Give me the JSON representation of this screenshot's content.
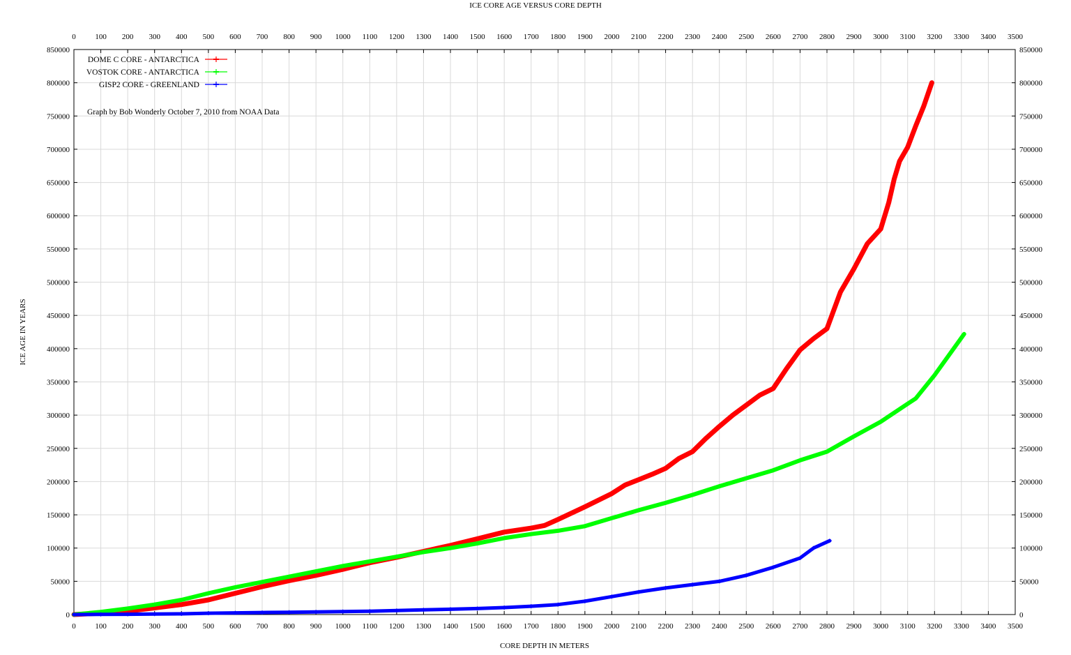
{
  "chart_data": {
    "type": "line",
    "title": "ICE CORE AGE VERSUS CORE DEPTH",
    "xlabel": "CORE DEPTH IN METERS",
    "ylabel": "ICE AGE IN YEARS",
    "annotation": "Graph by Bob Wonderly October 7, 2010 from NOAA Data",
    "xlim": [
      0,
      3500
    ],
    "ylim": [
      0,
      850000
    ],
    "x_ticks": [
      0,
      100,
      200,
      300,
      400,
      500,
      600,
      700,
      800,
      900,
      1000,
      1100,
      1200,
      1300,
      1400,
      1500,
      1600,
      1700,
      1800,
      1900,
      2000,
      2100,
      2200,
      2300,
      2400,
      2500,
      2600,
      2700,
      2800,
      2900,
      3000,
      3100,
      3200,
      3300,
      3400,
      3500
    ],
    "y_ticks": [
      0,
      50000,
      100000,
      150000,
      200000,
      250000,
      300000,
      350000,
      400000,
      450000,
      500000,
      550000,
      600000,
      650000,
      700000,
      750000,
      800000,
      850000
    ],
    "x_tick_axes": [
      "bottom",
      "top"
    ],
    "y_tick_axes": [
      "left",
      "right"
    ],
    "grid": true,
    "legend_position": "top-left",
    "series": [
      {
        "name": "DOME C CORE - ANTARCTICA",
        "color": "#ff0000",
        "x": [
          0,
          100,
          200,
          300,
          400,
          500,
          600,
          700,
          800,
          900,
          1000,
          1100,
          1200,
          1300,
          1400,
          1500,
          1600,
          1700,
          1750,
          1800,
          1900,
          2000,
          2050,
          2100,
          2150,
          2200,
          2250,
          2300,
          2350,
          2400,
          2450,
          2500,
          2550,
          2600,
          2650,
          2700,
          2750,
          2800,
          2850,
          2900,
          2950,
          3000,
          3030,
          3050,
          3070,
          3100,
          3130,
          3160,
          3190
        ],
        "y": [
          0,
          2000,
          5000,
          10000,
          15000,
          22000,
          32000,
          42000,
          51000,
          59000,
          68000,
          78000,
          86000,
          95000,
          104000,
          114000,
          124000,
          130000,
          134000,
          143000,
          162000,
          182000,
          195000,
          203000,
          211000,
          220000,
          235000,
          245000,
          265000,
          283000,
          300000,
          315000,
          330000,
          340000,
          370000,
          398000,
          415000,
          430000,
          485000,
          520000,
          558000,
          580000,
          620000,
          655000,
          682000,
          703000,
          735000,
          765000,
          800000
        ]
      },
      {
        "name": "VOSTOK CORE - ANTARCTICA",
        "color": "#00ff00",
        "x": [
          0,
          100,
          200,
          300,
          400,
          500,
          600,
          700,
          800,
          900,
          1000,
          1100,
          1200,
          1300,
          1400,
          1500,
          1600,
          1700,
          1800,
          1900,
          2000,
          2100,
          2200,
          2300,
          2400,
          2500,
          2600,
          2700,
          2800,
          2900,
          3000,
          3100,
          3130,
          3200,
          3310
        ],
        "y": [
          0,
          4000,
          9000,
          15000,
          22000,
          32000,
          41000,
          49000,
          57000,
          65000,
          73000,
          80000,
          87000,
          94000,
          100000,
          107000,
          115000,
          121000,
          126000,
          133000,
          145000,
          157000,
          168000,
          180000,
          193000,
          205000,
          217000,
          232000,
          245000,
          268000,
          290000,
          317000,
          325000,
          360000,
          422000
        ]
      },
      {
        "name": "GISP2 CORE - GREENLAND",
        "color": "#0000ff",
        "x": [
          0,
          100,
          200,
          300,
          400,
          500,
          600,
          700,
          800,
          900,
          1000,
          1100,
          1200,
          1300,
          1400,
          1500,
          1600,
          1700,
          1800,
          1900,
          2000,
          2100,
          2200,
          2300,
          2400,
          2500,
          2600,
          2700,
          2750,
          2810
        ],
        "y": [
          0,
          200,
          400,
          700,
          1000,
          2000,
          2500,
          3000,
          3500,
          4000,
          4500,
          5000,
          6000,
          7000,
          8000,
          9000,
          10500,
          12500,
          15000,
          20000,
          27000,
          34000,
          40000,
          45000,
          50000,
          59000,
          71000,
          85000,
          100000,
          111000
        ]
      }
    ]
  }
}
